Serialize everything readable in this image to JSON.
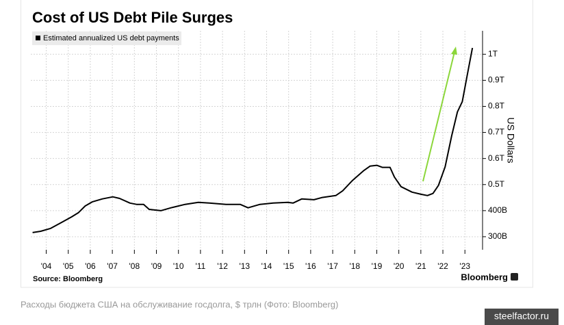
{
  "chart_data": {
    "type": "line",
    "title": "Cost of US Debt Pile Surges",
    "y_label": "US Dollars",
    "source": "Source: Bloomberg",
    "brand": "Bloomberg",
    "caption": "Расходы бюджета США на обслуживание госдолга, $ трлн (Фото: Bloomberg)",
    "watermark": "steelfactor.ru",
    "x": [
      2003.38,
      2003.75,
      2004.2,
      2004.7,
      2005.15,
      2005.46,
      2005.77,
      2006.1,
      2006.55,
      2007.02,
      2007.33,
      2007.8,
      2008.1,
      2008.42,
      2008.67,
      2009.2,
      2009.66,
      2010.3,
      2010.9,
      2011.4,
      2012.16,
      2012.8,
      2013.16,
      2013.7,
      2014.3,
      2014.96,
      2015.2,
      2015.6,
      2016.15,
      2016.5,
      2017.14,
      2017.45,
      2017.9,
      2018.4,
      2018.7,
      2019.0,
      2019.25,
      2019.6,
      2019.8,
      2020.1,
      2020.6,
      2021.0,
      2021.3,
      2021.55,
      2021.8,
      2022.1,
      2022.4,
      2022.66,
      2022.88,
      2023.1,
      2023.34
    ],
    "series": [
      {
        "name": "Estimated annualized US debt payments",
        "color": "#000000",
        "values": [
          316,
          321,
          332,
          355,
          376,
          392,
          418,
          434,
          445,
          453,
          447,
          429,
          424,
          424,
          405,
          400,
          411,
          424,
          432,
          429,
          424,
          424,
          411,
          424,
          429,
          432,
          429,
          445,
          442,
          450,
          458,
          476,
          516,
          553,
          571,
          574,
          566,
          566,
          529,
          492,
          471,
          463,
          458,
          466,
          497,
          568,
          687,
          779,
          818,
          918,
          1024
        ]
      }
    ],
    "xlim": [
      2003.3,
      2023.8
    ],
    "xticks": [
      {
        "value": 2004,
        "label": "'04"
      },
      {
        "value": 2005,
        "label": "'05"
      },
      {
        "value": 2006,
        "label": "'06"
      },
      {
        "value": 2007,
        "label": "'07"
      },
      {
        "value": 2008,
        "label": "'08"
      },
      {
        "value": 2009,
        "label": "'09"
      },
      {
        "value": 2010,
        "label": "'10"
      },
      {
        "value": 2011,
        "label": "'11"
      },
      {
        "value": 2012,
        "label": "'12"
      },
      {
        "value": 2013,
        "label": "'13"
      },
      {
        "value": 2014,
        "label": "'14"
      },
      {
        "value": 2015,
        "label": "'15"
      },
      {
        "value": 2016,
        "label": "'16"
      },
      {
        "value": 2017,
        "label": "'17"
      },
      {
        "value": 2018,
        "label": "'18"
      },
      {
        "value": 2019,
        "label": "'19"
      },
      {
        "value": 2020,
        "label": "'20"
      },
      {
        "value": 2021,
        "label": "'21"
      },
      {
        "value": 2022,
        "label": "'22"
      },
      {
        "value": 2023,
        "label": "'23"
      }
    ],
    "ylim": [
      250,
      1090
    ],
    "yticks": [
      {
        "value": 300,
        "label": "300B"
      },
      {
        "value": 400,
        "label": "400B"
      },
      {
        "value": 500,
        "label": "0.5T"
      },
      {
        "value": 600,
        "label": "0.6T"
      },
      {
        "value": 700,
        "label": "0.7T"
      },
      {
        "value": 800,
        "label": "0.8T"
      },
      {
        "value": 900,
        "label": "0.9T"
      },
      {
        "value": 1000,
        "label": "1T"
      }
    ],
    "grid": true
  }
}
